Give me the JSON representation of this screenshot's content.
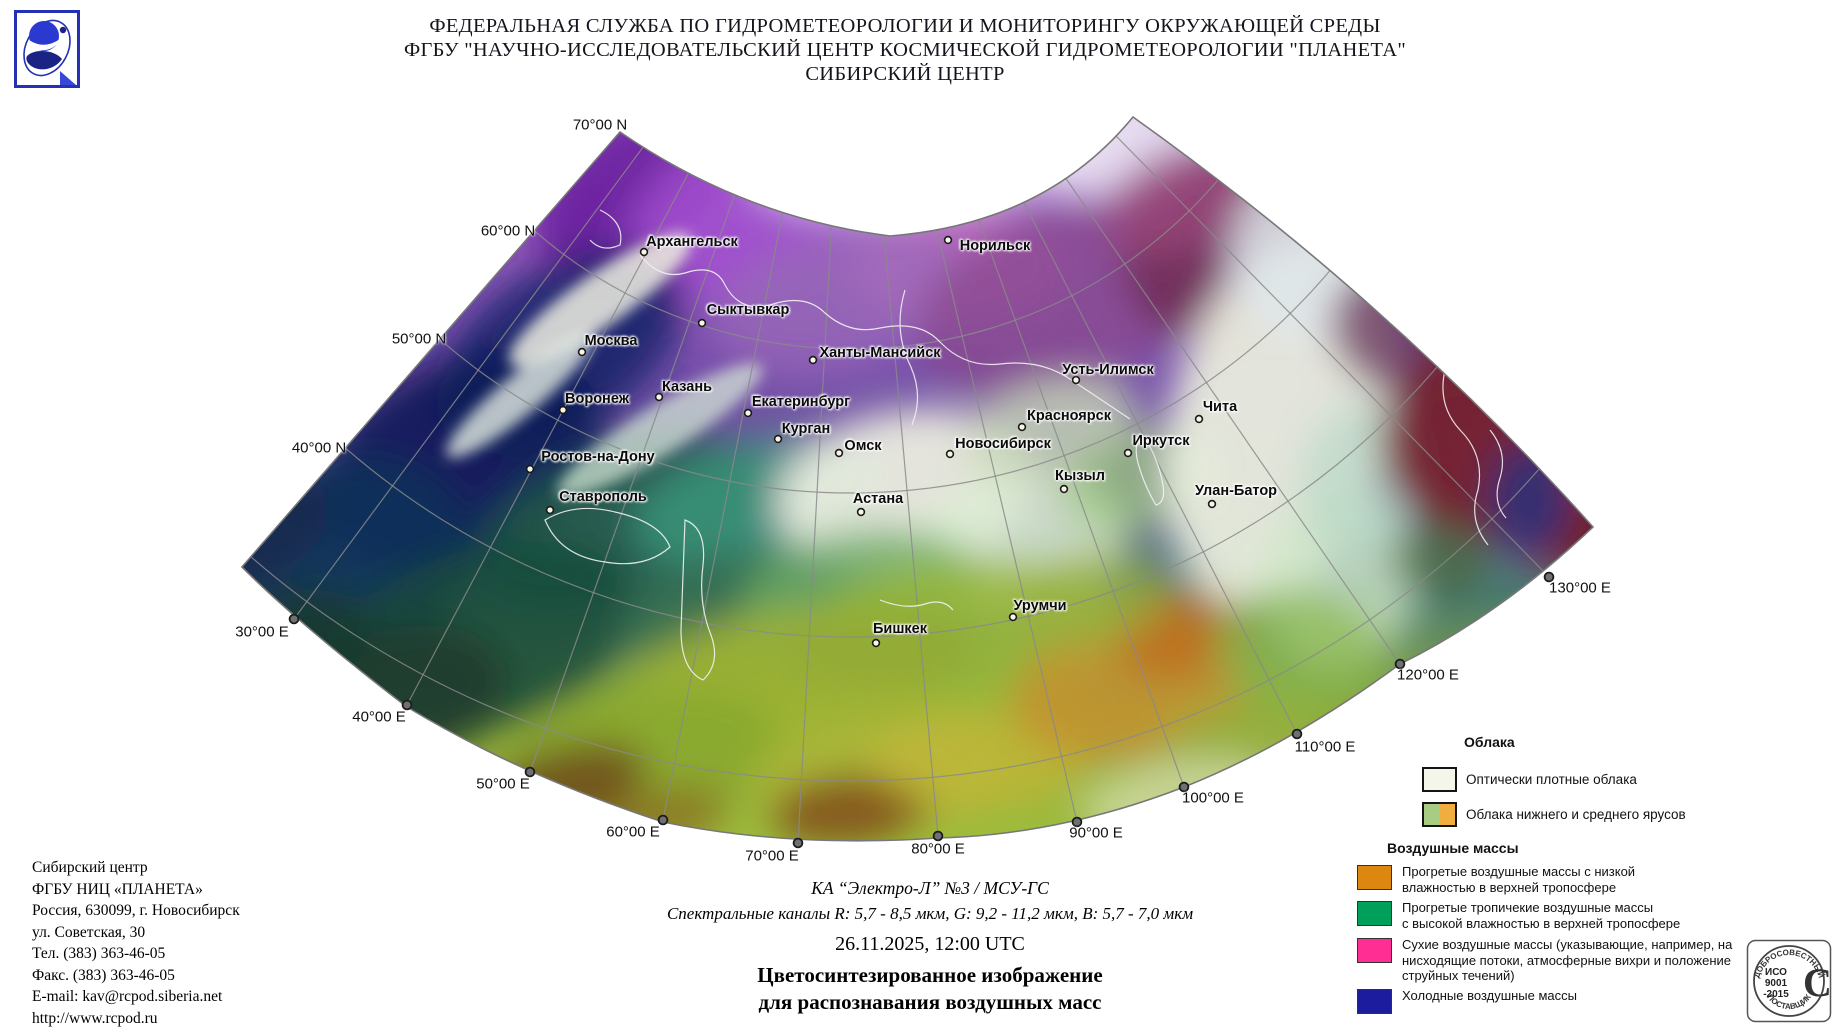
{
  "header": {
    "line1": "ФЕДЕРАЛЬНАЯ СЛУЖБА ПО ГИДРОМЕТЕОРОЛОГИИ И МОНИТОРИНГУ ОКРУЖАЮЩЕЙ СРЕДЫ",
    "line2": "ФГБУ \"НАУЧНО-ИССЛЕДОВАТЕЛЬСКИЙ ЦЕНТР КОСМИЧЕСКОЙ ГИДРОМЕТЕОРОЛОГИИ \"ПЛАНЕТА\"",
    "line3": "СИБИРСКИЙ ЦЕНТР"
  },
  "map": {
    "cities": [
      {
        "name": "Архангельск",
        "label": [
          692,
          242
        ],
        "dot": [
          644,
          252
        ]
      },
      {
        "name": "Норильск",
        "label": [
          995,
          246
        ],
        "dot": [
          948,
          240
        ]
      },
      {
        "name": "Сыктывкар",
        "label": [
          748,
          310
        ],
        "dot": [
          702,
          323
        ]
      },
      {
        "name": "Москва",
        "label": [
          611,
          341
        ],
        "dot": [
          582,
          352
        ]
      },
      {
        "name": "Ханты-Мансийск",
        "label": [
          880,
          353
        ],
        "dot": [
          813,
          360
        ]
      },
      {
        "name": "Казань",
        "label": [
          687,
          387
        ],
        "dot": [
          659,
          397
        ]
      },
      {
        "name": "Воронеж",
        "label": [
          597,
          399
        ],
        "dot": [
          563,
          410
        ]
      },
      {
        "name": "Екатеринбург",
        "label": [
          801,
          402
        ],
        "dot": [
          748,
          413
        ]
      },
      {
        "name": "Курган",
        "label": [
          806,
          429
        ],
        "dot": [
          778,
          439
        ]
      },
      {
        "name": "Омск",
        "label": [
          863,
          446
        ],
        "dot": [
          839,
          453
        ]
      },
      {
        "name": "Новосибирск",
        "label": [
          1003,
          444
        ],
        "dot": [
          950,
          454
        ]
      },
      {
        "name": "Красноярск",
        "label": [
          1069,
          416
        ],
        "dot": [
          1022,
          427
        ]
      },
      {
        "name": "Усть-Илимск",
        "label": [
          1108,
          370
        ],
        "dot": [
          1076,
          380
        ]
      },
      {
        "name": "Чита",
        "label": [
          1220,
          407
        ],
        "dot": [
          1199,
          419
        ]
      },
      {
        "name": "Иркутск",
        "label": [
          1161,
          441
        ],
        "dot": [
          1128,
          453
        ]
      },
      {
        "name": "Кызыл",
        "label": [
          1080,
          476
        ],
        "dot": [
          1064,
          489
        ]
      },
      {
        "name": "Улан-Батор",
        "label": [
          1236,
          491
        ],
        "dot": [
          1212,
          504
        ]
      },
      {
        "name": "Астана",
        "label": [
          878,
          499
        ],
        "dot": [
          861,
          512
        ]
      },
      {
        "name": "Ростов-на-Дону",
        "label": [
          598,
          457
        ],
        "dot": [
          530,
          469
        ]
      },
      {
        "name": "Ставрополь",
        "label": [
          603,
          497
        ],
        "dot": [
          550,
          510
        ]
      },
      {
        "name": "Бишкек",
        "label": [
          900,
          629
        ],
        "dot": [
          876,
          643
        ]
      },
      {
        "name": "Урумчи",
        "label": [
          1040,
          606
        ],
        "dot": [
          1013,
          617
        ]
      }
    ],
    "grid_labels": [
      {
        "text": "70°00 N",
        "label": [
          600,
          125
        ],
        "dot": null
      },
      {
        "text": "60°00 N",
        "label": [
          508,
          231
        ],
        "dot": null
      },
      {
        "text": "50°00 N",
        "label": [
          419,
          339
        ],
        "dot": null
      },
      {
        "text": "40°00 N",
        "label": [
          319,
          448
        ],
        "dot": null
      },
      {
        "text": "30°00 E",
        "label": [
          262,
          632
        ],
        "dot": [
          294,
          619
        ]
      },
      {
        "text": "40°00 E",
        "label": [
          379,
          717
        ],
        "dot": [
          407,
          705
        ]
      },
      {
        "text": "50°00 E",
        "label": [
          503,
          784
        ],
        "dot": [
          530,
          772
        ]
      },
      {
        "text": "60°00 E",
        "label": [
          633,
          832
        ],
        "dot": [
          663,
          820
        ]
      },
      {
        "text": "70°00 E",
        "label": [
          772,
          856
        ],
        "dot": [
          798,
          843
        ]
      },
      {
        "text": "80°00 E",
        "label": [
          938,
          849
        ],
        "dot": [
          938,
          836
        ]
      },
      {
        "text": "90°00 E",
        "label": [
          1096,
          833
        ],
        "dot": [
          1077,
          822
        ]
      },
      {
        "text": "100°00 E",
        "label": [
          1213,
          798
        ],
        "dot": [
          1184,
          787
        ]
      },
      {
        "text": "110°00 E",
        "label": [
          1325,
          747
        ],
        "dot": [
          1297,
          734
        ]
      },
      {
        "text": "120°00 E",
        "label": [
          1428,
          675
        ],
        "dot": [
          1400,
          664
        ]
      },
      {
        "text": "130°00 E",
        "label": [
          1580,
          588
        ],
        "dot": [
          1549,
          577
        ]
      }
    ]
  },
  "legend": {
    "clouds_title": "Облака",
    "clouds": [
      {
        "label": "Оптически плотные облака",
        "colors": [
          "#f3f6e9"
        ]
      },
      {
        "label": "Облака нижнего и среднего ярусов",
        "colors": [
          "#a8cc82",
          "#efae3e"
        ]
      }
    ],
    "air_title": "Воздушные массы",
    "air": [
      {
        "color": "#dc870f",
        "lines": [
          "Прогретые воздушные массы с низкой",
          "влажностью в верхней тропосфере"
        ]
      },
      {
        "color": "#00a05a",
        "lines": [
          "Прогретые тропичекие воздушные массы",
          "с высокой влажностью в верхней тропосфере"
        ]
      },
      {
        "color": "#ff2e93",
        "lines": [
          "Сухие воздушные массы (указывающие, например, на",
          "нисходящие потоки, атмосферные вихри и положение",
          "струйных течений)"
        ]
      },
      {
        "color": "#1c1c9e",
        "lines": [
          "Холодные воздушные массы"
        ]
      }
    ]
  },
  "contact": {
    "lines": [
      "Сибирский центр",
      "ФГБУ НИЦ «ПЛАНЕТА»",
      "Россия, 630099, г. Новосибирск",
      "ул. Советская, 30",
      "Тел. (383) 363-46-05",
      "Факс. (383) 363-46-05",
      "E-mail: kav@rcpod.siberia.net",
      "http://www.rcpod.ru"
    ]
  },
  "caption": {
    "satellite": "КА  “Электро-Л” №3 / МСУ-ГС",
    "channels": "Спектральные каналы R: 5,7 - 8,5 мкм, G: 9,2 - 11,2 мкм, B: 5,7 - 7,0 мкм",
    "datetime": "26.11.2025, 12:00 UTC",
    "title1": "Цветосинтезированное изображение",
    "title2": "для распознавания воздушных масс"
  },
  "stamp": {
    "arc_top": "ДОБРОСОВЕСТНЫЙ",
    "mid1": "ИСО",
    "mid2": "9001",
    "mid3": "-2015",
    "big_c": "С",
    "arc_bottom": "ПОСТАВЩИК"
  }
}
